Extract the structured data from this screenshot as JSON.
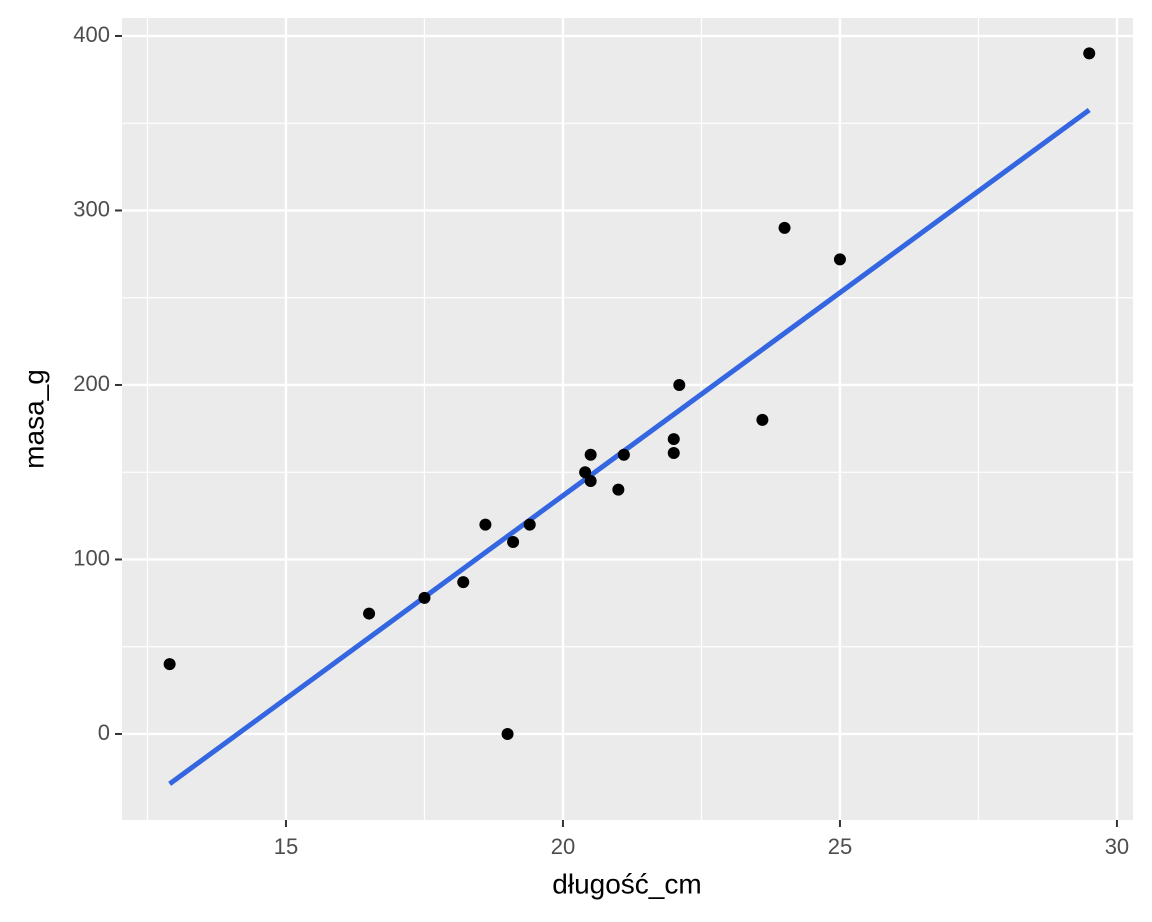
{
  "chart_data": {
    "type": "scatter",
    "x_label": "długość_cm",
    "y_label": "masa_g",
    "x": [
      12.9,
      16.5,
      17.5,
      18.2,
      18.6,
      19.1,
      19.4,
      19.0,
      20.4,
      20.5,
      20.5,
      21.0,
      21.1,
      22.0,
      22.0,
      22.1,
      23.6,
      24.0,
      25.0,
      29.5
    ],
    "values": [
      40,
      69,
      78,
      87,
      120,
      110,
      120,
      0,
      150,
      160,
      145,
      140,
      160,
      169,
      161,
      200,
      180,
      290,
      272,
      390
    ],
    "color": "#000000",
    "trend": {
      "x": [
        12.9,
        29.5
      ],
      "values": [
        -28.6,
        357.6
      ],
      "color": "#3366e0"
    },
    "xlim": [
      12.04,
      30.29
    ],
    "ylim": [
      -49.3,
      410.3
    ],
    "xticks": [
      15,
      20,
      25,
      30
    ],
    "yticks": [
      0,
      100,
      200,
      300,
      400
    ],
    "xminor": [
      12.5,
      17.5,
      22.5,
      27.5
    ],
    "yminor": [
      50,
      150,
      250,
      350
    ],
    "grid": true
  }
}
